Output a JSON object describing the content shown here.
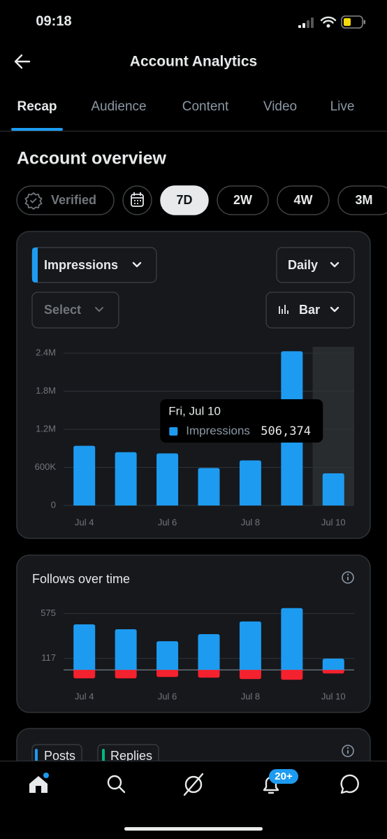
{
  "status_bar": {
    "time": "09:18"
  },
  "header": {
    "title": "Account Analytics"
  },
  "tabs": [
    "Recap",
    "Audience",
    "Content",
    "Video",
    "Live"
  ],
  "active_tab": 0,
  "section_title": "Account overview",
  "filters": {
    "badge": "Verified",
    "ranges": [
      "7D",
      "2W",
      "4W",
      "3M"
    ],
    "selected_range": 0
  },
  "impressions_card": {
    "metric": "Impressions",
    "interval": "Daily",
    "compare": "Select",
    "chart_style": "Bar"
  },
  "chart_data": [
    {
      "type": "bar",
      "categories": [
        "Jul 4",
        null,
        "Jul 6",
        null,
        "Jul 8",
        null,
        "Jul 10"
      ],
      "series": [
        {
          "name": "Impressions",
          "color": "#1d9bf0",
          "values": [
            940000,
            840000,
            820000,
            590000,
            710000,
            2430000,
            506374
          ]
        }
      ],
      "value_labels": [
        null,
        null,
        null,
        null,
        null,
        null,
        "506,374"
      ],
      "tooltip": {
        "title": "Fri, Jul 10"
      },
      "ylim": [
        0,
        2500000
      ],
      "yticks": [
        0,
        {
          "value": 600000,
          "label": "600K"
        },
        {
          "value": 1200000,
          "label": "1.2M"
        },
        {
          "value": 1800000,
          "label": "1.8M"
        },
        {
          "value": 2400000,
          "label": "2.4M"
        }
      ],
      "grid": true
    },
    {
      "type": "bar",
      "title": "Follows over time",
      "categories": [
        "Jul 4",
        null,
        "Jul 6",
        null,
        "Jul 8",
        null,
        "Jul 10"
      ],
      "series": [
        {
          "color": "#1d9bf0",
          "values": [
            465,
            415,
            293,
            365,
            494,
            630,
            115
          ]
        },
        {
          "color": "#f4212e",
          "values": [
            -86,
            -86,
            -72,
            -79,
            -93,
            -100,
            -36
          ]
        }
      ],
      "ylim": [
        -120,
        650
      ],
      "yticks": [
        117,
        575
      ],
      "grid": true
    }
  ],
  "posts_card": {
    "chips": [
      "Posts",
      "Replies"
    ]
  },
  "bottom_nav": {
    "notification_badge": "20+"
  }
}
